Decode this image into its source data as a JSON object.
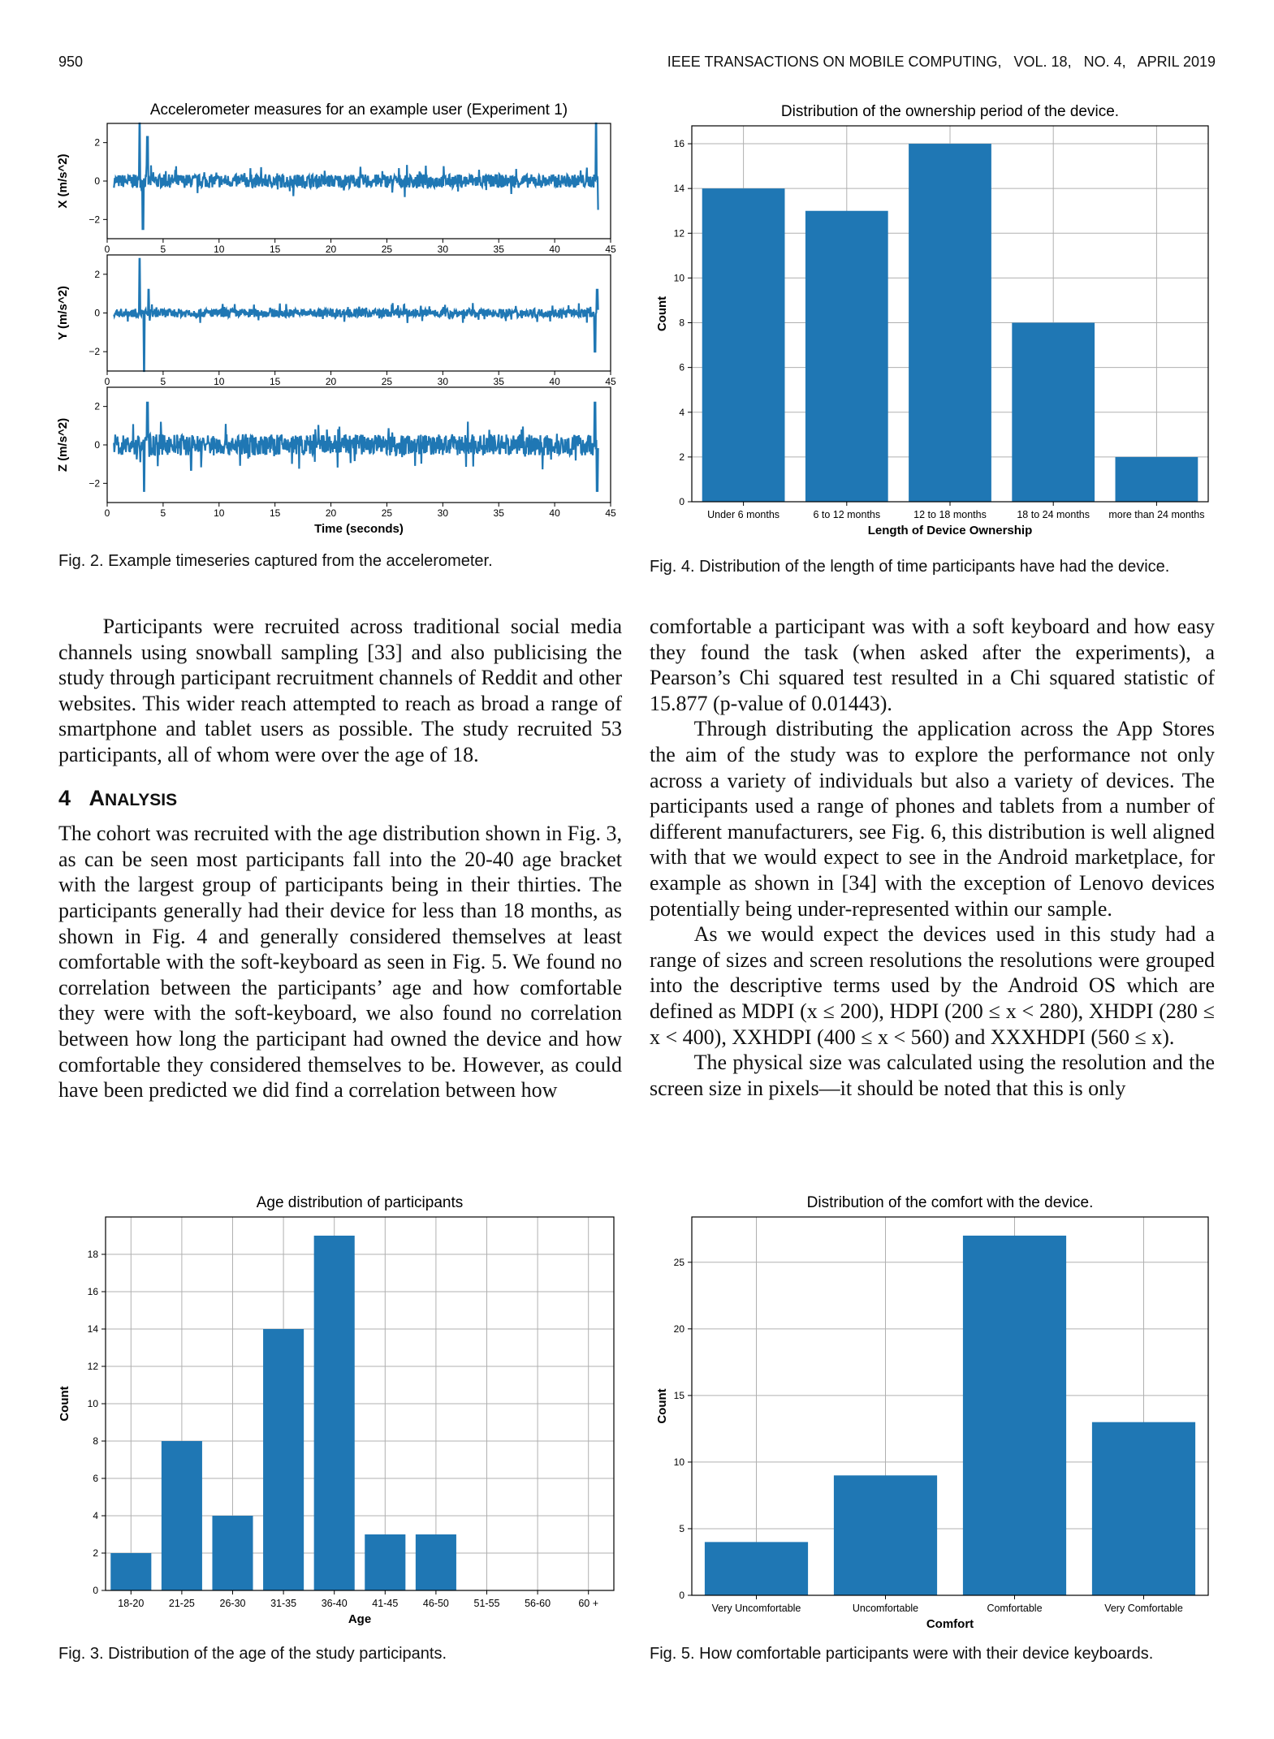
{
  "header": {
    "page_number": "950",
    "journal": "IEEE TRANSACTIONS ON MOBILE COMPUTING,   VOL. 18,   NO. 4,   APRIL 2019"
  },
  "figures": {
    "fig2": {
      "caption": "Fig. 2. Example timeseries captured from the accelerometer."
    },
    "fig3": {
      "caption": "Fig. 3. Distribution of the age of the study participants."
    },
    "fig4": {
      "caption": "Fig. 4. Distribution of the length of time participants have had the device."
    },
    "fig5": {
      "caption": "Fig. 5. How comfortable participants were with their device keyboards."
    }
  },
  "left_column": {
    "para1": "Participants were recruited across traditional social media channels using snowball sampling [33] and also publicising the study through participant recruitment channels of Reddit and other websites. This wider reach attempted to reach as broad a range of smartphone and tablet users as possible. The study recruited 53 participants, all of whom were over the age of 18.",
    "section_number": "4",
    "section_first": "A",
    "section_rest": "NALYSIS",
    "para2": "The cohort was recruited with the age distribution shown in Fig. 3, as can be seen most participants fall into the 20-40 age bracket with the largest group of participants being in their thirties. The participants generally had their device for less than 18 months, as shown in Fig. 4 and generally considered themselves at least comfortable with the soft-keyboard as seen in Fig. 5. We found no correlation between the participants’ age and how comfortable they were with the soft-keyboard, we also found no correlation between how long the participant had owned the device and how comfortable they considered themselves to be. However, as could have been predicted we did find a correlation between how"
  },
  "right_column": {
    "para1": "comfortable a participant was with a soft keyboard and how easy they found the task (when asked after the experiments), a Pearson’s Chi squared test resulted in a Chi squared statistic of 15.877 (p-value of 0.01443).",
    "para2": "Through distributing the application across the App Stores the aim of the study was to explore the performance not only across a variety of individuals but also a variety of devices. The participants used a range of phones and tablets from a number of different manufacturers, see Fig. 6, this distribution is well aligned with that we would expect to see in the Android marketplace, for example as shown in [34] with the exception of Lenovo devices potentially being under-represented within our sample.",
    "para3": "As we would expect the devices used in this study had a range of sizes and screen resolutions the resolutions were grouped into the descriptive terms used by the Android OS which are defined as MDPI (x ≤ 200), HDPI (200 ≤ x < 280), XHDPI (280 ≤ x < 400), XXHDPI (400 ≤ x < 560) and XXXHDPI (560 ≤ x).",
    "para4": "The physical size was calculated using the resolution and the screen size in pixels—it should be noted that this is only"
  },
  "chart_data": [
    {
      "id": "fig2",
      "type": "line",
      "title": "Accelerometer measures for an example user (Experiment 1)",
      "xlabel": "Time (seconds)",
      "xlim": [
        0,
        45
      ],
      "xticks": [
        "0",
        "5",
        "10",
        "15",
        "20",
        "25",
        "30",
        "35",
        "40",
        "45"
      ],
      "ylim": [
        -3,
        3
      ],
      "yticks": [
        "2",
        "0",
        "−2"
      ],
      "grid": false,
      "color": "#1f77b4",
      "panels": [
        {
          "ylabel": "X (m/s^2)",
          "spikes": [
            [
              2.9,
              3.2
            ],
            [
              3.2,
              -2.5
            ],
            [
              3.6,
              2.3
            ],
            [
              43.7,
              3.0
            ],
            [
              43.9,
              -1.5
            ]
          ],
          "noise": 0.35
        },
        {
          "ylabel": "Y (m/s^2)",
          "spikes": [
            [
              2.9,
              2.8
            ],
            [
              3.3,
              -3.0
            ],
            [
              3.7,
              1.2
            ],
            [
              43.6,
              -2.0
            ],
            [
              43.8,
              1.2
            ]
          ],
          "noise": 0.22
        },
        {
          "ylabel": "Z (m/s^2)",
          "spikes": [
            [
              3.3,
              -2.4
            ],
            [
              3.6,
              2.2
            ],
            [
              7.5,
              -1.3
            ],
            [
              43.6,
              2.2
            ],
            [
              43.8,
              -2.4
            ]
          ],
          "noise": 0.55
        }
      ]
    },
    {
      "id": "fig4",
      "type": "bar",
      "title": "Distribution of the ownership period of the device.",
      "xlabel": "Length of Device Ownership",
      "ylabel": "Count",
      "categories": [
        "Under 6 months",
        "6 to 12 months",
        "12 to 18 months",
        "18 to 24 months",
        "more than 24 months"
      ],
      "values": [
        14,
        13,
        16,
        8,
        2
      ],
      "ylim": [
        0,
        16.8
      ],
      "yticks": [
        0,
        2,
        4,
        6,
        8,
        10,
        12,
        14,
        16
      ],
      "grid": true,
      "color": "#1f77b4"
    },
    {
      "id": "fig3",
      "type": "bar",
      "title": "Age distribution of participants",
      "xlabel": "Age",
      "ylabel": "Count",
      "categories": [
        "18-20",
        "21-25",
        "26-30",
        "31-35",
        "36-40",
        "41-45",
        "46-50",
        "51-55",
        "56-60",
        "60 +"
      ],
      "values": [
        2,
        8,
        4,
        14,
        19,
        3,
        3,
        0,
        0,
        0
      ],
      "ylim": [
        0,
        20
      ],
      "yticks": [
        0,
        2,
        4,
        6,
        8,
        10,
        12,
        14,
        16,
        18
      ],
      "grid": true,
      "color": "#1f77b4"
    },
    {
      "id": "fig5",
      "type": "bar",
      "title": "Distribution of the comfort with the device.",
      "xlabel": "Comfort",
      "ylabel": "Count",
      "categories": [
        "Very Uncomfortable",
        "Uncomfortable",
        "Comfortable",
        "Very Comfortable"
      ],
      "values": [
        4,
        9,
        27,
        13
      ],
      "ylim": [
        0,
        28.4
      ],
      "yticks": [
        0,
        5,
        10,
        15,
        20,
        25
      ],
      "grid": true,
      "color": "#1f77b4"
    }
  ]
}
